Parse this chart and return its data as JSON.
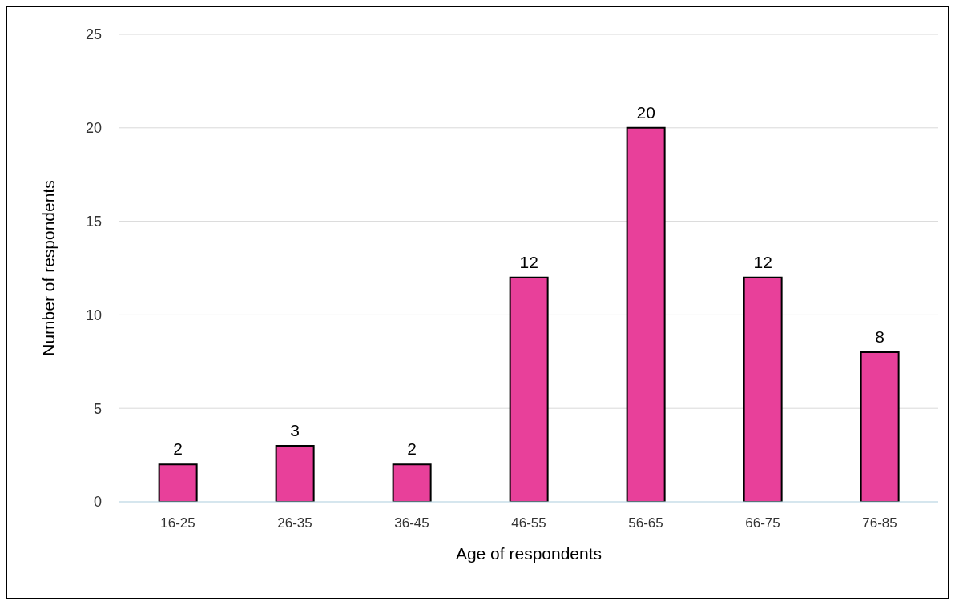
{
  "chart_data": {
    "type": "bar",
    "xlabel": "Age of respondents",
    "ylabel": "Number of respondents",
    "categories": [
      "16-25",
      "26-35",
      "36-45",
      "46-55",
      "56-65",
      "66-75",
      "76-85"
    ],
    "values": [
      2,
      3,
      2,
      12,
      20,
      12,
      8
    ],
    "color": "#e8409a",
    "ylim": [
      0,
      25
    ],
    "yticks": [
      0,
      5,
      10,
      15,
      20,
      25
    ],
    "grid": "y",
    "data_labels": true
  }
}
